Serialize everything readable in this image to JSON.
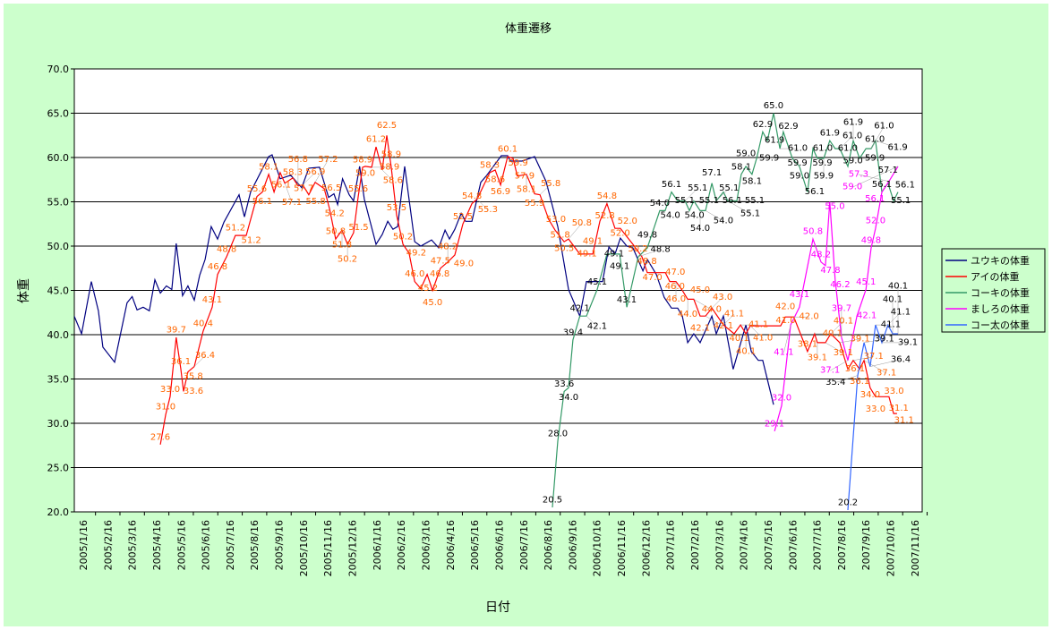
{
  "chart_data": {
    "type": "line",
    "title": "体重遷移",
    "xlabel": "日付",
    "ylabel": "体重",
    "ylim": [
      20,
      70
    ],
    "yticks": [
      "20.0",
      "25.0",
      "30.0",
      "35.0",
      "40.0",
      "45.0",
      "50.0",
      "55.0",
      "60.0",
      "65.0",
      "70.0"
    ],
    "xticks": [
      "2005/1/16",
      "2005/2/16",
      "2005/3/16",
      "2005/4/16",
      "2005/5/16",
      "2005/6/16",
      "2005/7/16",
      "2005/8/16",
      "2005/9/16",
      "2005/10/16",
      "2005/11/16",
      "2005/12/16",
      "2006/1/16",
      "2006/2/16",
      "2006/3/16",
      "2006/4/16",
      "2006/5/16",
      "2006/6/16",
      "2006/7/16",
      "2006/8/16",
      "2006/9/16",
      "2006/10/16",
      "2006/11/16",
      "2006/12/16",
      "2007/1/16",
      "2007/2/16",
      "2007/3/16",
      "2007/4/16",
      "2007/5/16",
      "2007/6/16",
      "2007/7/16",
      "2007/8/16",
      "2007/9/16",
      "2007/10/16",
      "2007/11/16"
    ],
    "x_unit": "months since 2005/1/16",
    "grid": true,
    "legend": "right",
    "series": [
      {
        "name": "ユウキの体重",
        "color": "#000080",
        "label_color": "#000000",
        "show_labels": false,
        "points": [
          [
            -0.37,
            42.1
          ],
          [
            -0.07,
            40.1
          ],
          [
            0.33,
            46.0
          ],
          [
            0.62,
            42.7
          ],
          [
            0.8,
            38.6
          ],
          [
            1.28,
            36.9
          ],
          [
            1.79,
            43.6
          ],
          [
            2.0,
            44.3
          ],
          [
            2.2,
            42.8
          ],
          [
            2.45,
            43.1
          ],
          [
            2.7,
            42.7
          ],
          [
            2.93,
            46.2
          ],
          [
            3.15,
            44.7
          ],
          [
            3.4,
            45.5
          ],
          [
            3.62,
            45.1
          ],
          [
            3.8,
            50.3
          ],
          [
            4.06,
            44.4
          ],
          [
            4.28,
            45.5
          ],
          [
            4.54,
            43.9
          ],
          [
            4.76,
            46.7
          ],
          [
            4.98,
            48.5
          ],
          [
            5.23,
            52.2
          ],
          [
            5.49,
            50.8
          ],
          [
            5.75,
            52.7
          ],
          [
            6.37,
            55.8
          ],
          [
            6.59,
            53.3
          ],
          [
            6.84,
            56.1
          ],
          [
            7.58,
            60.1
          ],
          [
            7.72,
            60.3
          ],
          [
            8.05,
            57.6
          ],
          [
            8.48,
            58.0
          ],
          [
            8.93,
            56.6
          ],
          [
            9.22,
            58.8
          ],
          [
            9.66,
            58.9
          ],
          [
            10.03,
            55.5
          ],
          [
            10.25,
            55.9
          ],
          [
            10.4,
            54.7
          ],
          [
            10.6,
            57.6
          ],
          [
            10.87,
            55.8
          ],
          [
            11.05,
            55.1
          ],
          [
            11.3,
            59.0
          ],
          [
            11.49,
            55.3
          ],
          [
            11.97,
            50.2
          ],
          [
            12.22,
            51.3
          ],
          [
            12.45,
            52.8
          ],
          [
            12.66,
            51.9
          ],
          [
            12.85,
            52.2
          ],
          [
            13.14,
            59.0
          ],
          [
            13.55,
            50.5
          ],
          [
            13.8,
            50.0
          ],
          [
            14.24,
            50.7
          ],
          [
            14.53,
            49.8
          ],
          [
            14.79,
            51.8
          ],
          [
            14.97,
            50.8
          ],
          [
            15.19,
            51.9
          ],
          [
            15.45,
            53.7
          ],
          [
            15.63,
            52.8
          ],
          [
            15.89,
            52.8
          ],
          [
            16.25,
            57.2
          ],
          [
            16.47,
            57.9
          ],
          [
            17.09,
            60.2
          ],
          [
            17.35,
            60.2
          ],
          [
            17.46,
            59.6
          ],
          [
            17.94,
            59.6
          ],
          [
            18.45,
            60.1
          ],
          [
            18.92,
            57.3
          ],
          [
            19.4,
            52.2
          ],
          [
            19.84,
            45.1
          ],
          [
            20.3,
            42.1
          ],
          [
            20.57,
            46.0
          ],
          [
            21.23,
            46.0
          ],
          [
            21.49,
            49.9
          ],
          [
            21.74,
            49.1
          ],
          [
            21.96,
            50.9
          ],
          [
            22.22,
            50.0
          ],
          [
            22.47,
            49.8
          ],
          [
            22.88,
            47.2
          ],
          [
            23.06,
            48.5
          ],
          [
            23.43,
            46.8
          ],
          [
            23.75,
            44.2
          ],
          [
            24.05,
            43.0
          ],
          [
            24.3,
            43.0
          ],
          [
            24.49,
            42.1
          ],
          [
            24.71,
            39.1
          ],
          [
            24.96,
            40.1
          ],
          [
            25.22,
            39.1
          ],
          [
            25.7,
            42.1
          ],
          [
            25.88,
            40.1
          ],
          [
            26.17,
            42.1
          ],
          [
            26.57,
            36.1
          ],
          [
            27.09,
            41.1
          ],
          [
            27.31,
            38.1
          ],
          [
            27.6,
            37.1
          ],
          [
            27.78,
            37.1
          ],
          [
            28.22,
            32.1
          ]
        ]
      },
      {
        "name": "アイの体重",
        "color": "#ff0000",
        "label_color": "#ff6600",
        "show_labels": true,
        "points": [
          [
            3.15,
            27.6
          ],
          [
            3.37,
            31.0
          ],
          [
            3.55,
            33.0
          ],
          [
            3.8,
            39.7
          ],
          [
            3.99,
            36.1
          ],
          [
            4.1,
            33.6
          ],
          [
            4.28,
            35.8
          ],
          [
            4.54,
            36.4
          ],
          [
            4.9,
            40.4
          ],
          [
            5.27,
            43.1
          ],
          [
            5.49,
            46.8
          ],
          [
            5.86,
            48.8
          ],
          [
            6.22,
            51.2
          ],
          [
            6.66,
            51.2
          ],
          [
            7.1,
            55.6
          ],
          [
            7.32,
            56.1
          ],
          [
            7.58,
            58.1
          ],
          [
            7.8,
            56.1
          ],
          [
            8.05,
            58.3
          ],
          [
            8.24,
            57.1
          ],
          [
            8.57,
            57.7
          ],
          [
            8.78,
            56.8
          ],
          [
            8.97,
            56.9
          ],
          [
            9.22,
            55.8
          ],
          [
            9.48,
            57.2
          ],
          [
            9.85,
            56.5
          ],
          [
            10.07,
            54.2
          ],
          [
            10.32,
            50.8
          ],
          [
            10.58,
            51.8
          ],
          [
            10.8,
            50.2
          ],
          [
            11.05,
            51.5
          ],
          [
            11.24,
            55.6
          ],
          [
            11.42,
            58.9
          ],
          [
            11.53,
            59.0
          ],
          [
            11.79,
            58.9
          ],
          [
            11.97,
            61.2
          ],
          [
            12.22,
            58.6
          ],
          [
            12.41,
            62.5
          ],
          [
            12.59,
            58.9
          ],
          [
            12.81,
            53.5
          ],
          [
            13.07,
            50.2
          ],
          [
            13.32,
            49.2
          ],
          [
            13.55,
            46.0
          ],
          [
            13.8,
            45.2
          ],
          [
            14.06,
            46.8
          ],
          [
            14.28,
            45.0
          ],
          [
            14.6,
            47.5
          ],
          [
            14.9,
            48.2
          ],
          [
            15.19,
            49.0
          ],
          [
            15.52,
            52.5
          ],
          [
            15.89,
            54.8
          ],
          [
            16.1,
            55.3
          ],
          [
            16.62,
            58.3
          ],
          [
            16.84,
            58.6
          ],
          [
            17.06,
            56.9
          ],
          [
            17.35,
            60.1
          ],
          [
            17.57,
            59.9
          ],
          [
            17.75,
            57.9
          ],
          [
            18.12,
            58.1
          ],
          [
            18.45,
            55.9
          ],
          [
            18.67,
            55.8
          ],
          [
            19.03,
            53.0
          ],
          [
            19.29,
            51.8
          ],
          [
            19.66,
            50.5
          ],
          [
            19.84,
            50.8
          ],
          [
            20.3,
            49.1
          ],
          [
            20.83,
            49.1
          ],
          [
            21.12,
            52.8
          ],
          [
            21.41,
            54.8
          ],
          [
            21.74,
            52.0
          ],
          [
            21.96,
            52.0
          ],
          [
            22.47,
            50.2
          ],
          [
            22.84,
            48.8
          ],
          [
            23.06,
            47.0
          ],
          [
            23.8,
            47.0
          ],
          [
            23.98,
            46.0
          ],
          [
            24.23,
            46.0
          ],
          [
            24.49,
            45.0
          ],
          [
            24.71,
            44.0
          ],
          [
            24.96,
            44.0
          ],
          [
            25.22,
            42.1
          ],
          [
            25.44,
            42.1
          ],
          [
            25.7,
            43.0
          ],
          [
            26.17,
            41.1
          ],
          [
            26.61,
            40.1
          ],
          [
            26.87,
            41.1
          ],
          [
            27.09,
            40.1
          ],
          [
            27.27,
            41.0
          ],
          [
            28.51,
            41.0
          ],
          [
            28.7,
            42.0
          ],
          [
            29.05,
            42.0
          ],
          [
            29.61,
            38.1
          ],
          [
            29.9,
            40.1
          ],
          [
            30.01,
            39.1
          ],
          [
            30.34,
            39.1
          ],
          [
            30.56,
            40.1
          ],
          [
            30.93,
            39.1
          ],
          [
            31.26,
            36.1
          ],
          [
            31.48,
            37.1
          ],
          [
            31.74,
            36.1
          ],
          [
            31.92,
            37.1
          ],
          [
            32.17,
            34.0
          ],
          [
            32.39,
            33.0
          ],
          [
            32.94,
            33.0
          ],
          [
            33.13,
            31.1
          ],
          [
            33.27,
            31.1
          ]
        ]
      },
      {
        "name": "コーキの体重",
        "color": "#339966",
        "label_color": "#000000",
        "show_labels": true,
        "points": [
          [
            19.18,
            20.5
          ],
          [
            19.4,
            28.0
          ],
          [
            19.66,
            33.6
          ],
          [
            19.84,
            34.0
          ],
          [
            20.02,
            39.4
          ],
          [
            20.3,
            42.1
          ],
          [
            20.57,
            42.1
          ],
          [
            21.01,
            45.1
          ],
          [
            21.41,
            49.1
          ],
          [
            21.93,
            49.1
          ],
          [
            22.22,
            43.1
          ],
          [
            22.69,
            48.8
          ],
          [
            23.06,
            49.8
          ],
          [
            23.57,
            54.0
          ],
          [
            23.79,
            54.0
          ],
          [
            24.05,
            56.1
          ],
          [
            24.3,
            55.1
          ],
          [
            24.6,
            55.1
          ],
          [
            24.78,
            54.0
          ],
          [
            24.96,
            55.1
          ],
          [
            25.22,
            54.0
          ],
          [
            25.44,
            54.0
          ],
          [
            25.7,
            57.1
          ],
          [
            25.88,
            55.1
          ],
          [
            26.17,
            56.1
          ],
          [
            26.35,
            55.1
          ],
          [
            26.72,
            55.1
          ],
          [
            26.9,
            58.1
          ],
          [
            27.09,
            59.0
          ],
          [
            27.34,
            58.1
          ],
          [
            27.53,
            59.9
          ],
          [
            27.78,
            62.9
          ],
          [
            27.97,
            61.9
          ],
          [
            28.22,
            65.0
          ],
          [
            28.48,
            61.0
          ],
          [
            28.62,
            62.9
          ],
          [
            28.99,
            59.9
          ],
          [
            29.28,
            59.0
          ],
          [
            29.61,
            56.1
          ],
          [
            29.83,
            61.0
          ],
          [
            30.01,
            59.9
          ],
          [
            30.27,
            59.9
          ],
          [
            30.52,
            61.9
          ],
          [
            30.74,
            61.0
          ],
          [
            30.93,
            61.0
          ],
          [
            31.26,
            59.0
          ],
          [
            31.48,
            61.9
          ],
          [
            31.74,
            59.9
          ],
          [
            32.0,
            61.0
          ],
          [
            32.21,
            61.0
          ],
          [
            32.39,
            61.9
          ],
          [
            32.65,
            56.1
          ],
          [
            32.9,
            57.1
          ],
          [
            33.13,
            55.1
          ],
          [
            33.31,
            56.1
          ]
        ]
      },
      {
        "name": "ましろの体重",
        "color": "#ff00ff",
        "label_color": "#ff00ff",
        "show_labels": true,
        "points": [
          [
            28.26,
            29.1
          ],
          [
            28.55,
            32.0
          ],
          [
            28.92,
            41.1
          ],
          [
            29.28,
            43.1
          ],
          [
            29.83,
            50.8
          ],
          [
            30.16,
            48.2
          ],
          [
            30.34,
            47.8
          ],
          [
            30.52,
            55.0
          ],
          [
            30.74,
            46.2
          ],
          [
            31.0,
            39.7
          ],
          [
            31.26,
            37.1
          ],
          [
            31.63,
            42.1
          ],
          [
            32.0,
            45.1
          ],
          [
            32.21,
            49.8
          ],
          [
            32.39,
            52.0
          ],
          [
            32.65,
            56.1
          ],
          [
            32.94,
            57.3
          ],
          [
            33.31,
            59.0
          ]
        ]
      },
      {
        "name": "コー太の体重",
        "color": "#3366ff",
        "label_color": "#000000",
        "show_labels": true,
        "points": [
          [
            31.26,
            20.2
          ],
          [
            31.66,
            35.4
          ],
          [
            31.92,
            39.1
          ],
          [
            32.17,
            36.4
          ],
          [
            32.39,
            41.1
          ],
          [
            32.65,
            39.1
          ],
          [
            32.9,
            41.1
          ],
          [
            33.09,
            40.1
          ],
          [
            33.31,
            40.1
          ]
        ]
      }
    ]
  }
}
